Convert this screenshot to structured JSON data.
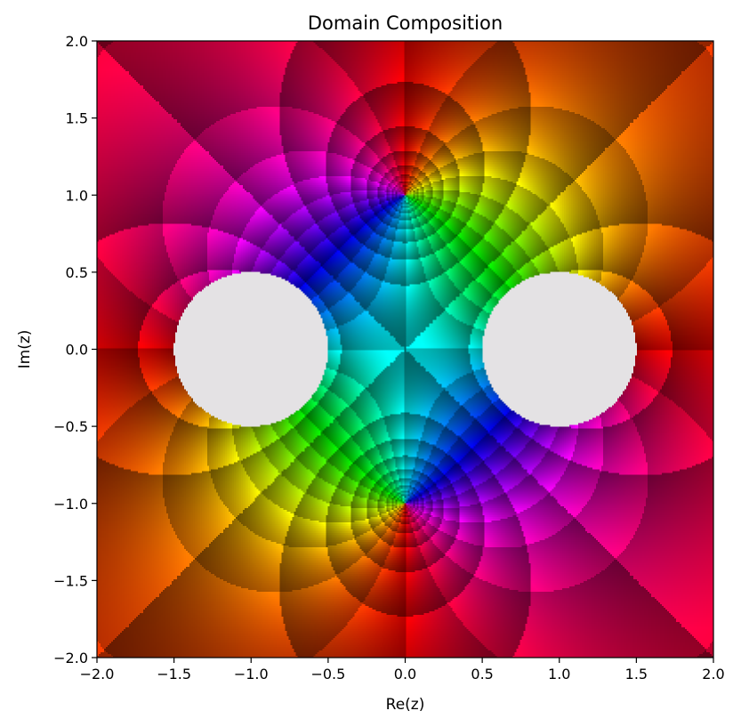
{
  "chart_data": {
    "type": "heatmap",
    "title": "Domain Composition",
    "xlabel": "Re(z)",
    "ylabel": "Im(z)",
    "xlim": [
      -2.0,
      2.0
    ],
    "ylim": [
      -2.0,
      2.0
    ],
    "x_ticks": [
      "−2.0",
      "−1.5",
      "−1.0",
      "−0.5",
      "0.0",
      "0.5",
      "1.0",
      "1.5",
      "2.0"
    ],
    "y_ticks": [
      "−2.0",
      "−1.5",
      "−1.0",
      "−0.5",
      "0.0",
      "0.5",
      "1.0",
      "1.5",
      "2.0"
    ],
    "x_tick_values": [
      -2.0,
      -1.5,
      -1.0,
      -0.5,
      0.0,
      0.5,
      1.0,
      1.5,
      2.0
    ],
    "y_tick_values": [
      -2.0,
      -1.5,
      -1.0,
      -0.5,
      0.0,
      0.5,
      1.0,
      1.5,
      2.0
    ],
    "coloring": "domain coloring: hue = argument, brightness bands = log modulus and phase contours",
    "singular_points": [
      [
        0.0,
        1.0
      ],
      [
        0.0,
        -1.0
      ]
    ],
    "excluded_disks": [
      {
        "center": [
          -1.0,
          0.0
        ],
        "radius": 0.5
      },
      {
        "center": [
          1.0,
          0.0
        ],
        "radius": 0.5
      }
    ],
    "excluded_color": "#e4e2e4",
    "grid": false
  }
}
